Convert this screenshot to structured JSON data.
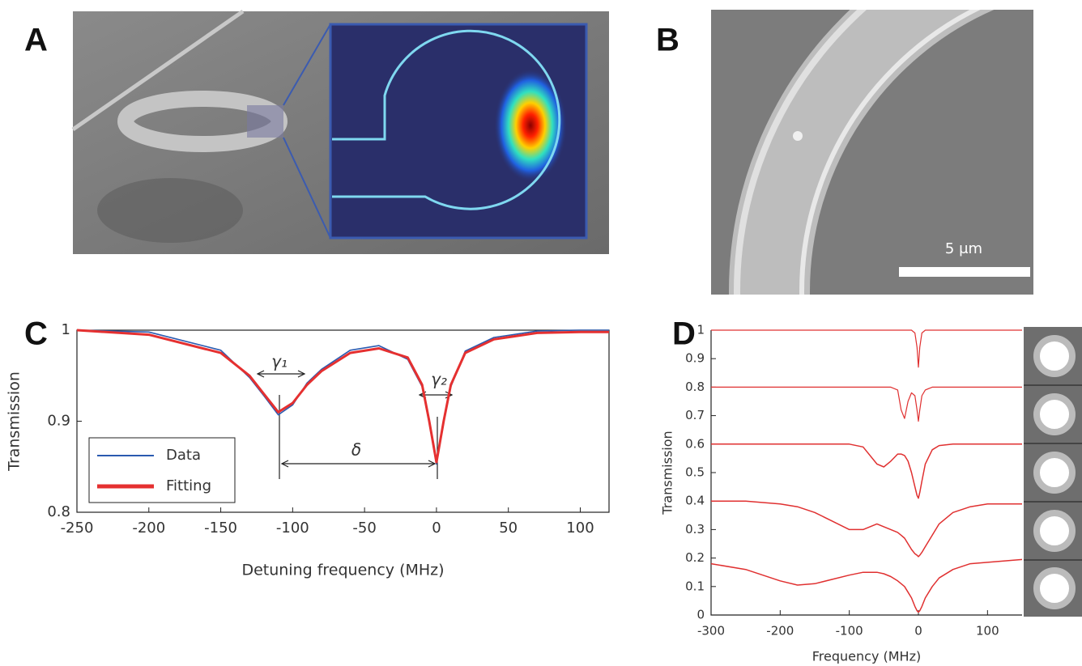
{
  "panels": {
    "a": {
      "label": "A"
    },
    "b": {
      "label": "B",
      "scale_bar": "5 μm"
    }
  },
  "chart_data": [
    {
      "type": "line",
      "panel_label": "C",
      "xlabel": "Detuning frequency (MHz)",
      "ylabel": "Transmission",
      "xlim": [
        -250,
        120
      ],
      "ylim": [
        0.8,
        1
      ],
      "xticks": [
        -250,
        -200,
        -150,
        -100,
        -50,
        0,
        50,
        100
      ],
      "yticks": [
        0.8,
        0.9,
        1
      ],
      "x": [
        -250,
        -200,
        -150,
        -130,
        -120,
        -110,
        -100,
        -90,
        -80,
        -60,
        -40,
        -20,
        -10,
        -5,
        0,
        5,
        10,
        20,
        40,
        70,
        100,
        120
      ],
      "series": [
        {
          "name": "Data",
          "color": "#2a5ab0",
          "values": [
            1,
            0.998,
            0.978,
            0.948,
            0.928,
            0.907,
            0.918,
            0.942,
            0.957,
            0.978,
            0.983,
            0.968,
            0.938,
            0.898,
            0.853,
            0.902,
            0.938,
            0.977,
            0.992,
            0.999,
            1,
            1
          ]
        },
        {
          "name": "Fitting",
          "color": "#e53030",
          "values": [
            1,
            0.995,
            0.975,
            0.95,
            0.93,
            0.91,
            0.92,
            0.94,
            0.955,
            0.975,
            0.98,
            0.97,
            0.94,
            0.9,
            0.855,
            0.9,
            0.94,
            0.975,
            0.99,
            0.997,
            0.998,
            0.998
          ]
        }
      ],
      "legend": "lower-left",
      "annotations": [
        "γ₁",
        "γ₂",
        "δ"
      ]
    },
    {
      "type": "line",
      "panel_label": "D",
      "xlabel": "Frequency (MHz)",
      "ylabel": "Transmission",
      "xlim": [
        -300,
        150
      ],
      "ylim": [
        0,
        1
      ],
      "xticks": [
        -300,
        -200,
        -100,
        0,
        100
      ],
      "yticks": [
        0,
        0.1,
        0.2,
        0.3,
        0.4,
        0.5,
        0.6,
        0.7,
        0.8,
        0.9,
        1
      ],
      "x": [
        -300,
        -250,
        -200,
        -175,
        -150,
        -125,
        -100,
        -80,
        -60,
        -50,
        -40,
        -30,
        -25,
        -20,
        -15,
        -10,
        -5,
        -2,
        0,
        2,
        5,
        10,
        20,
        30,
        50,
        75,
        100,
        125,
        150
      ],
      "series": [
        {
          "color": "#e03030",
          "values": [
            1,
            1,
            1,
            1,
            1,
            1,
            1,
            1,
            1,
            1,
            1,
            1,
            1,
            1,
            1,
            1,
            0.99,
            0.94,
            0.87,
            0.94,
            0.99,
            1,
            1,
            1,
            1,
            1,
            1,
            1,
            1
          ]
        },
        {
          "color": "#e03030",
          "values": [
            0.8,
            0.8,
            0.8,
            0.8,
            0.8,
            0.8,
            0.8,
            0.8,
            0.8,
            0.8,
            0.8,
            0.79,
            0.72,
            0.69,
            0.75,
            0.78,
            0.77,
            0.72,
            0.68,
            0.72,
            0.77,
            0.79,
            0.8,
            0.8,
            0.8,
            0.8,
            0.8,
            0.8,
            0.8
          ]
        },
        {
          "color": "#e03030",
          "values": [
            0.6,
            0.6,
            0.6,
            0.6,
            0.6,
            0.6,
            0.6,
            0.59,
            0.53,
            0.52,
            0.54,
            0.565,
            0.565,
            0.56,
            0.54,
            0.5,
            0.45,
            0.42,
            0.41,
            0.43,
            0.47,
            0.53,
            0.58,
            0.595,
            0.6,
            0.6,
            0.6,
            0.6,
            0.6
          ]
        },
        {
          "color": "#e03030",
          "values": [
            0.4,
            0.4,
            0.39,
            0.38,
            0.36,
            0.33,
            0.3,
            0.3,
            0.32,
            0.31,
            0.3,
            0.29,
            0.28,
            0.27,
            0.25,
            0.23,
            0.215,
            0.21,
            0.205,
            0.21,
            0.22,
            0.24,
            0.28,
            0.32,
            0.36,
            0.38,
            0.39,
            0.39,
            0.39
          ]
        },
        {
          "color": "#e03030",
          "values": [
            0.18,
            0.16,
            0.12,
            0.105,
            0.11,
            0.125,
            0.14,
            0.15,
            0.15,
            0.145,
            0.135,
            0.12,
            0.11,
            0.1,
            0.08,
            0.06,
            0.03,
            0.015,
            0.01,
            0.015,
            0.03,
            0.06,
            0.1,
            0.13,
            0.16,
            0.18,
            0.185,
            0.19,
            0.195
          ]
        }
      ]
    }
  ]
}
